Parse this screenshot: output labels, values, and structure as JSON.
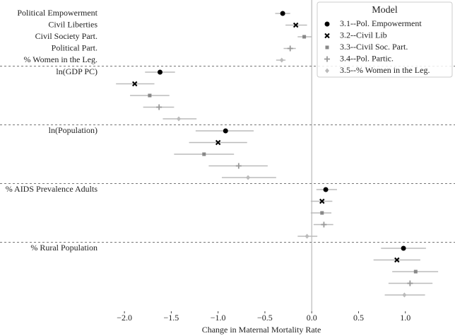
{
  "chart_data": {
    "type": "coefficient",
    "x_label": "Change in Maternal Mortality Rate",
    "legend_title": "Model",
    "legend_position": "upper right",
    "first_group_labels": [
      "Political Empowerment",
      "Civil Liberties",
      "Civil Society Part.",
      "Political Part.",
      "% Women in the Leg."
    ],
    "categories": [
      null,
      "ln(GDP PC)",
      "ln(Population)",
      "% AIDS Prevalence Adults",
      "% Rural Population"
    ],
    "xlim": [
      -2.25,
      1.5
    ],
    "xticks": [
      {
        "value": -2.0,
        "label": "−2.0"
      },
      {
        "value": -1.5,
        "label": "−1.5"
      },
      {
        "value": -1.0,
        "label": "−1.0"
      },
      {
        "value": -0.5,
        "label": "−0.5"
      },
      {
        "value": 0.0,
        "label": "0.0"
      },
      0.5,
      {
        "value": 1.0,
        "label": "1.0"
      }
    ],
    "reference_line": 0,
    "interval_color": "#bbbbbb",
    "series": [
      {
        "name": "3.1--Pol. Empowerment",
        "color": "#000000",
        "marker": "circle",
        "values": [
          -0.31,
          -1.62,
          -0.92,
          0.15,
          0.98
        ],
        "lower": [
          -0.39,
          -1.78,
          -1.24,
          0.05,
          0.74
        ],
        "upper": [
          -0.23,
          -1.46,
          -0.62,
          0.27,
          1.22
        ]
      },
      {
        "name": "3.2--Civil Lib",
        "color": "#000000",
        "marker": "x",
        "values": [
          -0.17,
          -1.89,
          -1.0,
          0.11,
          0.91
        ],
        "lower": [
          -0.28,
          -2.09,
          -1.31,
          -0.01,
          0.66
        ],
        "upper": [
          -0.05,
          -1.68,
          -0.69,
          0.22,
          1.16
        ]
      },
      {
        "name": "3.3--Civil Soc. Part.",
        "color": "#888888",
        "marker": "square",
        "values": [
          -0.08,
          -1.73,
          -1.15,
          0.11,
          1.11
        ],
        "lower": [
          -0.15,
          -1.94,
          -1.47,
          -0.01,
          0.86
        ],
        "upper": [
          0.0,
          -1.52,
          -0.83,
          0.21,
          1.35
        ]
      },
      {
        "name": "3.4--Pol. Partic.",
        "color": "#999999",
        "marker": "plus",
        "values": [
          -0.23,
          -1.63,
          -0.78,
          0.13,
          1.05
        ],
        "lower": [
          -0.3,
          -1.8,
          -1.1,
          0.02,
          0.82
        ],
        "upper": [
          -0.17,
          -1.47,
          -0.47,
          0.23,
          1.29
        ]
      },
      {
        "name": "3.5--% Women in the Leg.",
        "color": "#bbbbbb",
        "marker": "diamond",
        "values": [
          -0.32,
          -1.42,
          -0.68,
          -0.05,
          0.99
        ],
        "lower": [
          -0.38,
          -1.59,
          -0.96,
          -0.15,
          0.78
        ],
        "upper": [
          -0.28,
          -1.23,
          -0.38,
          0.06,
          1.21
        ]
      }
    ]
  }
}
